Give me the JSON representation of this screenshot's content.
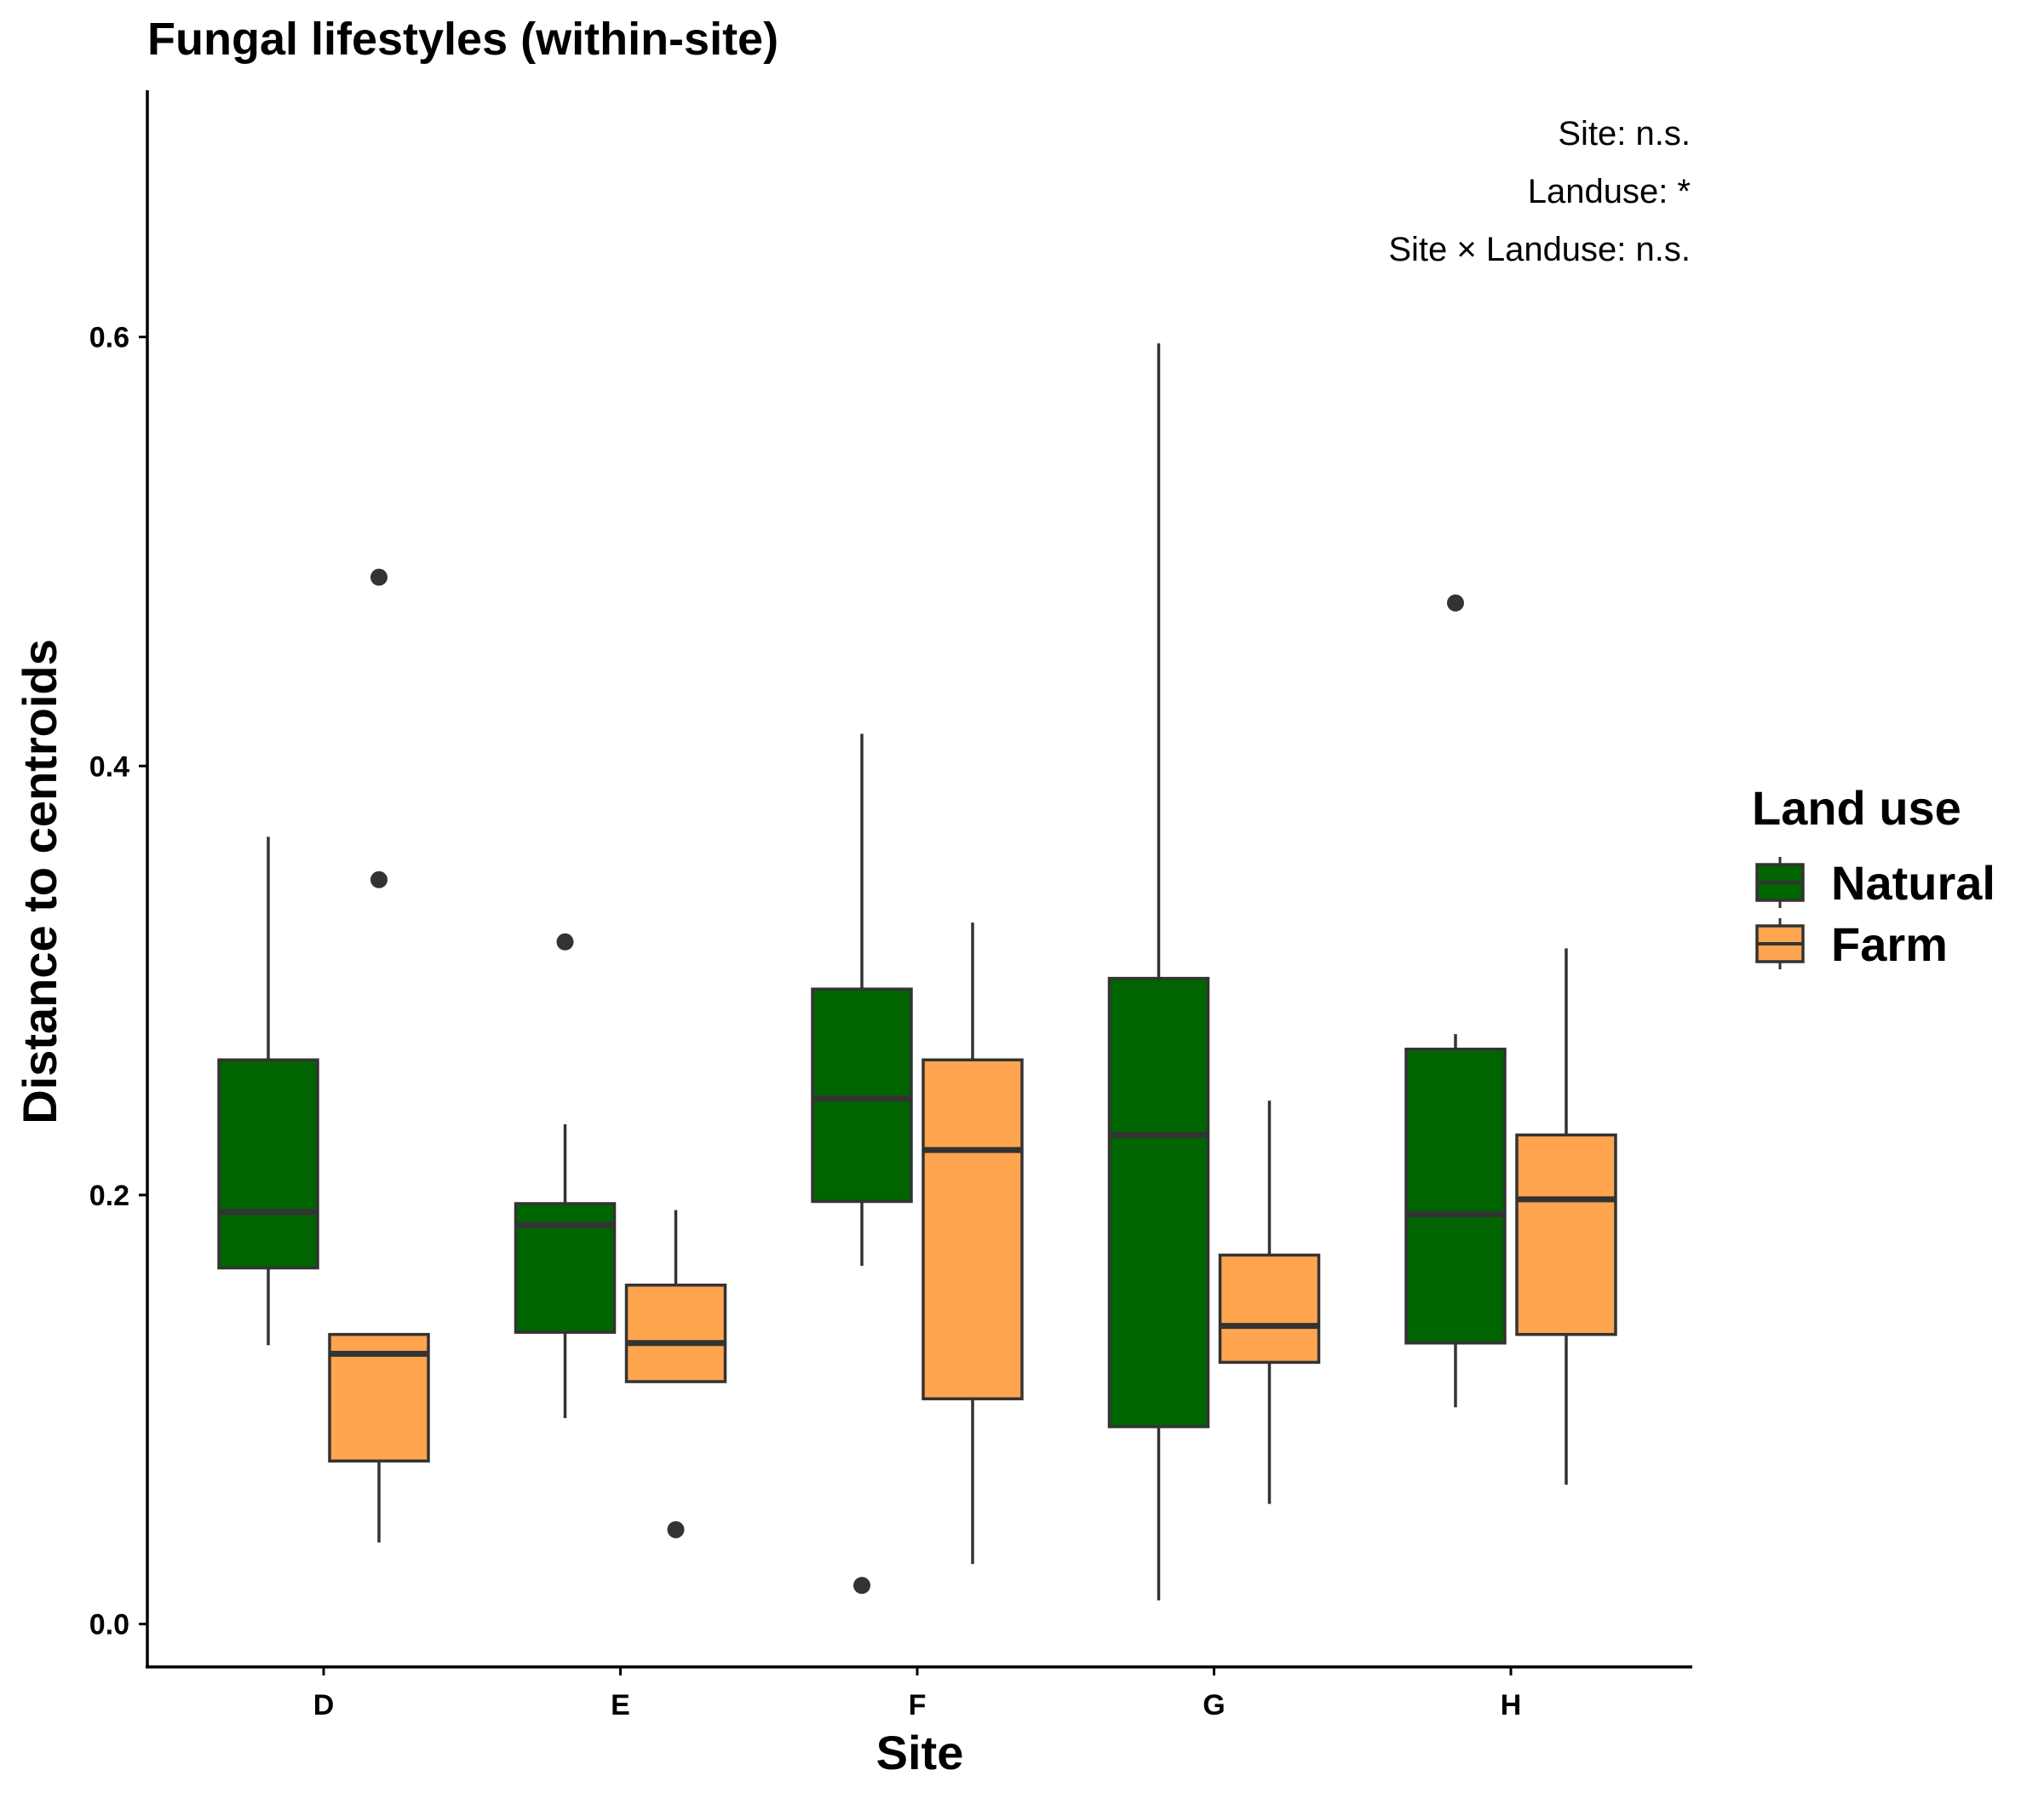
{
  "chart_data": {
    "type": "box",
    "title": "Fungal lifestyles (within-site)",
    "xlabel": "Site",
    "ylabel": "Distance to centroids",
    "ylim": [
      -0.02,
      0.715
    ],
    "yticks": [
      0.0,
      0.2,
      0.4,
      0.6
    ],
    "ytick_labels": [
      "0.0",
      "0.2",
      "0.4",
      "0.6"
    ],
    "categories": [
      "D",
      "E",
      "F",
      "G",
      "H"
    ],
    "grid": false,
    "legend": {
      "title": "Land use",
      "position": "right"
    },
    "annotations": [
      "Site: n.s.",
      "Landuse: *",
      "Site × Landuse: n.s."
    ],
    "series": [
      {
        "name": "Natural",
        "color": "#006400",
        "boxes": [
          {
            "category": "D",
            "whisker_low": 0.13,
            "q1": 0.166,
            "median": 0.192,
            "q3": 0.263,
            "whisker_high": 0.367,
            "outliers": []
          },
          {
            "category": "E",
            "whisker_low": 0.096,
            "q1": 0.136,
            "median": 0.186,
            "q3": 0.196,
            "whisker_high": 0.233,
            "outliers": [
              0.318
            ]
          },
          {
            "category": "F",
            "whisker_low": 0.167,
            "q1": 0.197,
            "median": 0.245,
            "q3": 0.296,
            "whisker_high": 0.415,
            "outliers": [
              0.018
            ]
          },
          {
            "category": "G",
            "whisker_low": 0.011,
            "q1": 0.092,
            "median": 0.228,
            "q3": 0.301,
            "whisker_high": 0.597,
            "outliers": []
          },
          {
            "category": "H",
            "whisker_low": 0.101,
            "q1": 0.131,
            "median": 0.191,
            "q3": 0.268,
            "whisker_high": 0.275,
            "outliers": [
              0.476
            ]
          }
        ]
      },
      {
        "name": "Farm",
        "color": "#FFA54F",
        "boxes": [
          {
            "category": "D",
            "whisker_low": 0.038,
            "q1": 0.076,
            "median": 0.126,
            "q3": 0.135,
            "whisker_high": 0.135,
            "outliers": [
              0.488,
              0.347
            ]
          },
          {
            "category": "E",
            "whisker_low": 0.113,
            "q1": 0.113,
            "median": 0.131,
            "q3": 0.158,
            "whisker_high": 0.193,
            "outliers": [
              0.044
            ]
          },
          {
            "category": "F",
            "whisker_low": 0.028,
            "q1": 0.105,
            "median": 0.221,
            "q3": 0.263,
            "whisker_high": 0.327,
            "outliers": []
          },
          {
            "category": "G",
            "whisker_low": 0.056,
            "q1": 0.122,
            "median": 0.139,
            "q3": 0.172,
            "whisker_high": 0.244,
            "outliers": []
          },
          {
            "category": "H",
            "whisker_low": 0.065,
            "q1": 0.135,
            "median": 0.198,
            "q3": 0.228,
            "whisker_high": 0.315,
            "outliers": []
          }
        ]
      }
    ]
  }
}
